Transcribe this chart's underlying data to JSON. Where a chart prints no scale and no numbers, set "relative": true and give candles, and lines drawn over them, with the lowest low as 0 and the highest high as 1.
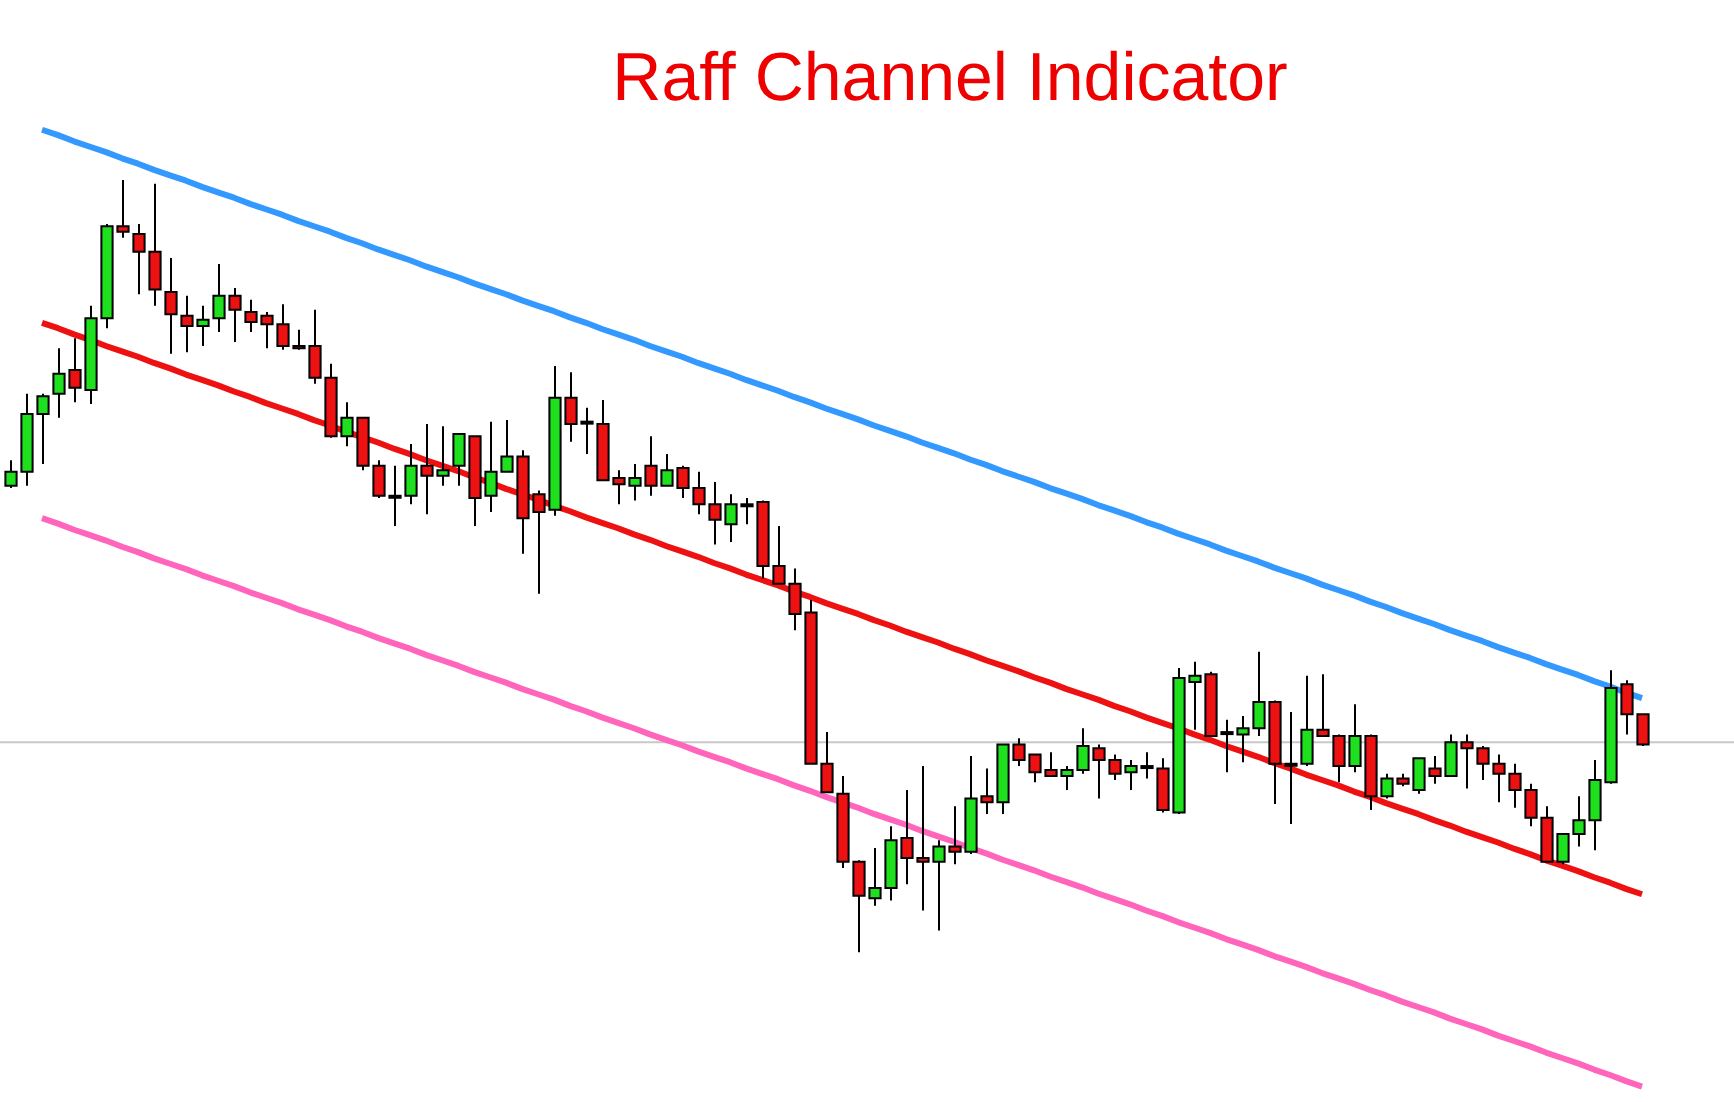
{
  "chart_data": {
    "type": "candlestick",
    "title": "Raff Channel Indicator",
    "relative": true,
    "tick_labels": false,
    "categories": [
      null,
      null,
      null,
      null,
      null,
      null,
      null,
      null,
      null,
      null,
      null,
      null,
      null,
      null,
      null,
      null,
      null,
      null,
      null,
      null,
      null,
      null,
      null,
      null,
      null,
      null,
      null,
      null,
      null,
      null,
      null,
      null,
      null,
      null,
      null,
      null,
      null,
      null,
      null,
      null,
      null,
      null,
      null,
      null,
      null,
      null,
      null,
      null,
      null,
      null,
      null,
      null,
      null,
      null,
      null,
      null,
      null,
      null,
      null,
      null,
      null,
      null,
      null,
      null,
      null,
      null,
      null,
      null,
      null,
      null,
      null,
      null,
      null,
      null,
      null,
      null,
      null,
      null,
      null,
      null,
      null,
      null,
      null,
      null,
      null,
      null,
      null,
      null,
      null,
      null,
      null,
      null,
      null,
      null,
      null,
      null,
      null,
      null,
      null,
      null,
      null,
      null,
      null
    ],
    "ohlc": [
      [
        0.604,
        0.637,
        0.601,
        0.622
      ],
      [
        0.622,
        0.723,
        0.604,
        0.697
      ],
      [
        0.697,
        0.723,
        0.632,
        0.72
      ],
      [
        0.723,
        0.782,
        0.692,
        0.749
      ],
      [
        0.754,
        0.795,
        0.712,
        0.731
      ],
      [
        0.728,
        0.837,
        0.71,
        0.821
      ],
      [
        0.821,
        0.943,
        0.808,
        0.94
      ],
      [
        0.94,
        1,
        0.925,
        0.933
      ],
      [
        0.93,
        0.943,
        0.852,
        0.907
      ],
      [
        0.907,
        0.995,
        0.837,
        0.858
      ],
      [
        0.855,
        0.899,
        0.775,
        0.826
      ],
      [
        0.824,
        0.85,
        0.777,
        0.811
      ],
      [
        0.811,
        0.837,
        0.785,
        0.819
      ],
      [
        0.821,
        0.891,
        0.803,
        0.85
      ],
      [
        0.85,
        0.86,
        0.79,
        0.832
      ],
      [
        0.829,
        0.845,
        0.803,
        0.816
      ],
      [
        0.824,
        0.829,
        0.782,
        0.813
      ],
      [
        0.813,
        0.839,
        0.78,
        0.785
      ],
      [
        0.785,
        0.806,
        0.78,
        0.782
      ],
      [
        0.785,
        0.832,
        0.736,
        0.744
      ],
      [
        0.744,
        0.762,
        0.666,
        0.668
      ],
      [
        0.668,
        0.712,
        0.655,
        0.692
      ],
      [
        0.692,
        0.692,
        0.624,
        0.63
      ],
      [
        0.63,
        0.637,
        0.588,
        0.591
      ],
      [
        0.591,
        0.63,
        0.552,
        0.591
      ],
      [
        0.591,
        0.658,
        0.58,
        0.63
      ],
      [
        0.63,
        0.684,
        0.567,
        0.617
      ],
      [
        0.617,
        0.681,
        0.604,
        0.624
      ],
      [
        0.63,
        0.671,
        0.604,
        0.671
      ],
      [
        0.668,
        0.668,
        0.552,
        0.588
      ],
      [
        0.591,
        0.687,
        0.57,
        0.622
      ],
      [
        0.622,
        0.689,
        0.622,
        0.642
      ],
      [
        0.642,
        0.65,
        0.516,
        0.562
      ],
      [
        0.593,
        0.598,
        0.464,
        0.57
      ],
      [
        0.573,
        0.759,
        0.565,
        0.718
      ],
      [
        0.718,
        0.751,
        0.661,
        0.684
      ],
      [
        0.687,
        0.705,
        0.645,
        0.687
      ],
      [
        0.684,
        0.715,
        0.611,
        0.611
      ],
      [
        0.614,
        0.624,
        0.58,
        0.606
      ],
      [
        0.604,
        0.632,
        0.585,
        0.614
      ],
      [
        0.63,
        0.668,
        0.591,
        0.604
      ],
      [
        0.604,
        0.645,
        0.604,
        0.624
      ],
      [
        0.627,
        0.63,
        0.588,
        0.601
      ],
      [
        0.601,
        0.622,
        0.567,
        0.58
      ],
      [
        0.58,
        0.609,
        0.528,
        0.56
      ],
      [
        0.554,
        0.593,
        0.531,
        0.58
      ],
      [
        0.58,
        0.588,
        0.554,
        0.58
      ],
      [
        0.583,
        0.585,
        0.484,
        0.5
      ],
      [
        0.5,
        0.552,
        0.477,
        0.477
      ],
      [
        0.477,
        0.497,
        0.417,
        0.438
      ],
      [
        0.44,
        0.456,
        0.244,
        0.244
      ],
      [
        0.244,
        0.285,
        0.207,
        0.207
      ],
      [
        0.205,
        0.228,
        0.109,
        0.117
      ],
      [
        0.117,
        0.119,
        0,
        0.073
      ],
      [
        0.07,
        0.135,
        0.06,
        0.083
      ],
      [
        0.083,
        0.163,
        0.067,
        0.145
      ],
      [
        0.148,
        0.21,
        0.088,
        0.122
      ],
      [
        0.122,
        0.241,
        0.054,
        0.117
      ],
      [
        0.117,
        0.145,
        0.028,
        0.137
      ],
      [
        0.137,
        0.189,
        0.114,
        0.13
      ],
      [
        0.13,
        0.254,
        0.127,
        0.199
      ],
      [
        0.202,
        0.238,
        0.179,
        0.194
      ],
      [
        0.194,
        0.269,
        0.179,
        0.269
      ],
      [
        0.269,
        0.277,
        0.241,
        0.249
      ],
      [
        0.256,
        0.256,
        0.22,
        0.233
      ],
      [
        0.236,
        0.259,
        0.228,
        0.228
      ],
      [
        0.228,
        0.241,
        0.21,
        0.236
      ],
      [
        0.236,
        0.29,
        0.231,
        0.267
      ],
      [
        0.264,
        0.269,
        0.199,
        0.249
      ],
      [
        0.249,
        0.256,
        0.223,
        0.231
      ],
      [
        0.233,
        0.249,
        0.21,
        0.241
      ],
      [
        0.241,
        0.259,
        0.225,
        0.241
      ],
      [
        0.238,
        0.251,
        0.181,
        0.184
      ],
      [
        0.181,
        0.368,
        0.179,
        0.355
      ],
      [
        0.35,
        0.376,
        0.288,
        0.358
      ],
      [
        0.36,
        0.363,
        0.28,
        0.28
      ],
      [
        0.285,
        0.301,
        0.233,
        0.285
      ],
      [
        0.282,
        0.306,
        0.246,
        0.29
      ],
      [
        0.29,
        0.389,
        0.28,
        0.324
      ],
      [
        0.324,
        0.326,
        0.192,
        0.244
      ],
      [
        0.244,
        0.311,
        0.166,
        0.244
      ],
      [
        0.244,
        0.358,
        0.241,
        0.288
      ],
      [
        0.288,
        0.36,
        0.28,
        0.28
      ],
      [
        0.28,
        0.282,
        0.22,
        0.241
      ],
      [
        0.241,
        0.321,
        0.233,
        0.28
      ],
      [
        0.28,
        0.282,
        0.184,
        0.202
      ],
      [
        0.202,
        0.231,
        0.199,
        0.225
      ],
      [
        0.225,
        0.231,
        0.215,
        0.218
      ],
      [
        0.21,
        0.251,
        0.205,
        0.251
      ],
      [
        0.238,
        0.254,
        0.218,
        0.228
      ],
      [
        0.228,
        0.282,
        0.228,
        0.272
      ],
      [
        0.272,
        0.282,
        0.212,
        0.264
      ],
      [
        0.264,
        0.267,
        0.223,
        0.244
      ],
      [
        0.244,
        0.256,
        0.194,
        0.231
      ],
      [
        0.231,
        0.244,
        0.187,
        0.21
      ],
      [
        0.21,
        0.218,
        0.163,
        0.174
      ],
      [
        0.174,
        0.189,
        0.117,
        0.117
      ],
      [
        0.117,
        0.153,
        0.114,
        0.153
      ],
      [
        0.153,
        0.202,
        0.137,
        0.171
      ],
      [
        0.171,
        0.249,
        0.132,
        0.223
      ],
      [
        0.22,
        0.365,
        0.218,
        0.342
      ],
      [
        0.347,
        0.352,
        0.282,
        0.308
      ],
      [
        0.308,
        0.308,
        0.267,
        0.269
      ]
    ],
    "series": [
      {
        "type": "line",
        "color": "#3399ff",
        "values": [
          null,
          null,
          1.065,
          1.058,
          1.05,
          1.043,
          1.036,
          1.028,
          1.021,
          1.013,
          1.006,
          0.999,
          0.991,
          0.984,
          0.977,
          0.969,
          0.962,
          0.955,
          0.947,
          0.94,
          0.933,
          0.925,
          0.918,
          0.91,
          0.903,
          0.896,
          0.888,
          0.881,
          0.874,
          0.866,
          0.859,
          0.852,
          0.844,
          0.837,
          0.83,
          0.822,
          0.815,
          0.807,
          0.8,
          0.793,
          0.785,
          0.778,
          0.771,
          0.763,
          0.756,
          0.749,
          0.741,
          0.734,
          0.727,
          0.719,
          0.712,
          0.704,
          0.697,
          0.69,
          0.682,
          0.675,
          0.668,
          0.66,
          0.653,
          0.646,
          0.638,
          0.631,
          0.623,
          0.616,
          0.609,
          0.601,
          0.594,
          0.587,
          0.579,
          0.572,
          0.565,
          0.557,
          0.55,
          0.542,
          0.535,
          0.528,
          0.52,
          0.513,
          0.506,
          0.498,
          0.491,
          0.484,
          0.476,
          0.469,
          0.462,
          0.454,
          0.447,
          0.439,
          0.432,
          0.425,
          0.417,
          0.41,
          0.403,
          0.395,
          0.388,
          0.381,
          0.373,
          0.366,
          0.359,
          0.351,
          0.344,
          0.336,
          0.329
        ]
      },
      {
        "type": "line",
        "color": "#ee1111",
        "values": [
          null,
          null,
          0.815,
          0.808,
          0.8,
          0.793,
          0.785,
          0.778,
          0.771,
          0.763,
          0.756,
          0.748,
          0.741,
          0.734,
          0.726,
          0.719,
          0.711,
          0.704,
          0.697,
          0.689,
          0.682,
          0.674,
          0.667,
          0.66,
          0.652,
          0.645,
          0.637,
          0.63,
          0.623,
          0.615,
          0.608,
          0.6,
          0.593,
          0.586,
          0.578,
          0.571,
          0.563,
          0.556,
          0.549,
          0.541,
          0.534,
          0.526,
          0.519,
          0.512,
          0.504,
          0.497,
          0.489,
          0.482,
          0.475,
          0.467,
          0.46,
          0.452,
          0.445,
          0.438,
          0.43,
          0.423,
          0.415,
          0.408,
          0.401,
          0.393,
          0.386,
          0.378,
          0.371,
          0.364,
          0.356,
          0.349,
          0.341,
          0.334,
          0.327,
          0.319,
          0.312,
          0.304,
          0.297,
          0.29,
          0.282,
          0.275,
          0.267,
          0.26,
          0.253,
          0.245,
          0.238,
          0.23,
          0.223,
          0.216,
          0.208,
          0.201,
          0.193,
          0.186,
          0.179,
          0.171,
          0.164,
          0.156,
          0.149,
          0.142,
          0.134,
          0.127,
          0.119,
          0.112,
          0.105,
          0.097,
          0.09,
          0.082,
          0.075
        ]
      },
      {
        "type": "line",
        "color": "#ff66bb",
        "values": [
          null,
          null,
          0.562,
          0.555,
          0.547,
          0.54,
          0.533,
          0.525,
          0.518,
          0.51,
          0.503,
          0.496,
          0.488,
          0.481,
          0.474,
          0.466,
          0.459,
          0.452,
          0.444,
          0.437,
          0.43,
          0.422,
          0.415,
          0.407,
          0.4,
          0.393,
          0.385,
          0.378,
          0.371,
          0.363,
          0.356,
          0.349,
          0.341,
          0.334,
          0.327,
          0.319,
          0.312,
          0.304,
          0.297,
          0.29,
          0.282,
          0.275,
          0.268,
          0.26,
          0.253,
          0.246,
          0.238,
          0.231,
          0.224,
          0.216,
          0.209,
          0.201,
          0.194,
          0.187,
          0.179,
          0.172,
          0.165,
          0.157,
          0.15,
          0.143,
          0.135,
          0.128,
          0.12,
          0.113,
          0.106,
          0.098,
          0.091,
          0.084,
          0.076,
          0.069,
          0.062,
          0.054,
          0.047,
          0.039,
          0.032,
          0.025,
          0.017,
          0.01,
          0.003,
          -0.005,
          -0.012,
          -0.019,
          -0.027,
          -0.034,
          -0.041,
          -0.049,
          -0.056,
          -0.064,
          -0.071,
          -0.078,
          -0.086,
          -0.093,
          -0.1,
          -0.108,
          -0.115,
          -0.122,
          -0.13,
          -0.137,
          -0.144,
          -0.152,
          -0.159,
          -0.167,
          -0.174
        ]
      }
    ],
    "ref_lines": [
      {
        "axis": "y",
        "value": 0.272,
        "color": "#c8c8c8"
      }
    ]
  }
}
